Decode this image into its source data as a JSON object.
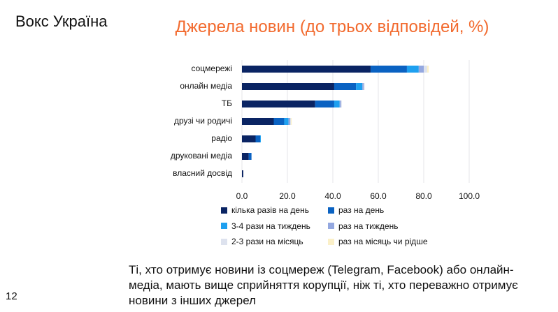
{
  "slide": {
    "brand": "Вокс Україна",
    "page_number": "12",
    "note": "Ті, хто отримує новини із соцмереж (Telegram, Facebook) або онлайн-медіа, мають вище сприйняття корупції, ніж ті, хто переважно отримує новини з інших джерел"
  },
  "chart_data": {
    "type": "bar",
    "orientation": "horizontal",
    "stacked": true,
    "title": "Джерела новин (до трьох відповідей, %)",
    "categories": [
      "соцмережі",
      "онлайн медіа",
      "ТБ",
      "друзі чи родичі",
      "радіо",
      "друковані медіа",
      "власний досвід"
    ],
    "xlim": [
      0,
      100
    ],
    "xticks": [
      "0.0",
      "20.0",
      "40.0",
      "60.0",
      "80.0",
      "100.0"
    ],
    "grid": true,
    "legend": "bottom",
    "series": [
      {
        "name": "кілька разів на день",
        "color": "#0a2463",
        "values": [
          56.6,
          40.6,
          32.2,
          14.0,
          6.0,
          3.0,
          0.6
        ]
      },
      {
        "name": "раз на день",
        "color": "#0a62c2",
        "values": [
          16.0,
          9.6,
          8.4,
          4.6,
          2.0,
          1.2,
          0
        ]
      },
      {
        "name": "3-4 рази на тиждень",
        "color": "#1ea0f0",
        "values": [
          5.2,
          2.8,
          2.4,
          1.9,
          0.3,
          0,
          0
        ]
      },
      {
        "name": "раз на тиждень",
        "color": "#94a8e0",
        "values": [
          2.2,
          0.6,
          0.6,
          0.8,
          0,
          0,
          0
        ]
      },
      {
        "name": "2-3 рази на місяць",
        "color": "#dde2ee",
        "values": [
          1.5,
          0.4,
          0.3,
          0.2,
          0,
          0,
          0
        ]
      },
      {
        "name": "раз на місяць чи рідше",
        "color": "#fbf0c8",
        "values": [
          0.7,
          0,
          0,
          0.4,
          0,
          0,
          0
        ]
      }
    ]
  }
}
